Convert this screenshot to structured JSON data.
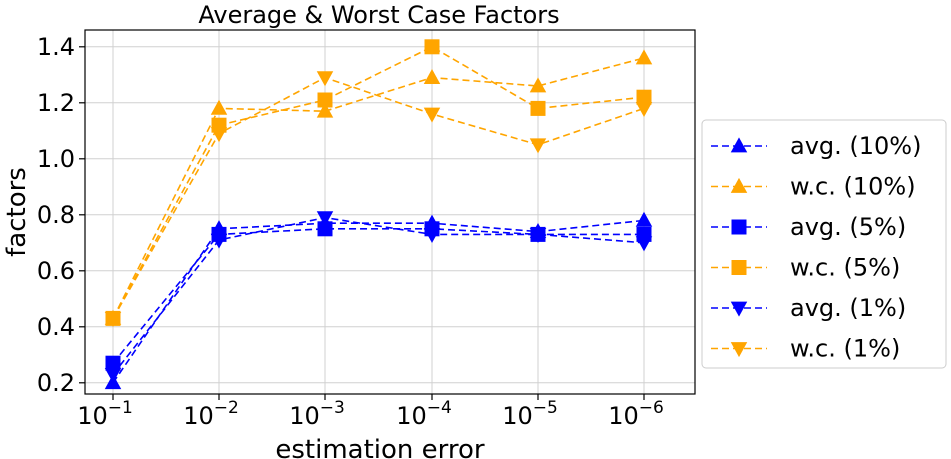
{
  "chart_data": {
    "type": "line",
    "title": "Average & Worst Case Factors",
    "xlabel": "estimation error",
    "ylabel": "factors",
    "x_tick_labels": [
      {
        "base": "10",
        "exp": "−1"
      },
      {
        "base": "10",
        "exp": "−2"
      },
      {
        "base": "10",
        "exp": "−3"
      },
      {
        "base": "10",
        "exp": "−4"
      },
      {
        "base": "10",
        "exp": "−5"
      },
      {
        "base": "10",
        "exp": "−6"
      }
    ],
    "y_tick_labels": [
      "0.2",
      "0.4",
      "0.6",
      "0.8",
      "1.0",
      "1.2",
      "1.4"
    ],
    "y_ticks": [
      0.2,
      0.4,
      0.6,
      0.8,
      1.0,
      1.2,
      1.4
    ],
    "ylim": [
      0.16,
      1.46
    ],
    "grid": true,
    "legend_position": "right",
    "series": [
      {
        "name": "avg. (10%)",
        "color": "#0000ff",
        "marker": "triangle-up",
        "values": [
          0.2,
          0.75,
          0.77,
          0.77,
          0.74,
          0.78
        ]
      },
      {
        "name": "w.c. (10%)",
        "color": "#ffa500",
        "marker": "triangle-up",
        "values": [
          0.43,
          1.18,
          1.17,
          1.29,
          1.26,
          1.36
        ]
      },
      {
        "name": "avg. (5%)",
        "color": "#0000ff",
        "marker": "square",
        "values": [
          0.27,
          0.73,
          0.75,
          0.75,
          0.73,
          0.73
        ]
      },
      {
        "name": "w.c. (5%)",
        "color": "#ffa500",
        "marker": "square",
        "values": [
          0.43,
          1.12,
          1.21,
          1.4,
          1.18,
          1.22
        ]
      },
      {
        "name": "avg. (1%)",
        "color": "#0000ff",
        "marker": "triangle-down",
        "values": [
          0.23,
          0.71,
          0.79,
          0.73,
          0.73,
          0.7
        ]
      },
      {
        "name": "w.c. (1%)",
        "color": "#ffa500",
        "marker": "triangle-down",
        "values": [
          0.43,
          1.09,
          1.29,
          1.16,
          1.05,
          1.18
        ]
      }
    ]
  }
}
